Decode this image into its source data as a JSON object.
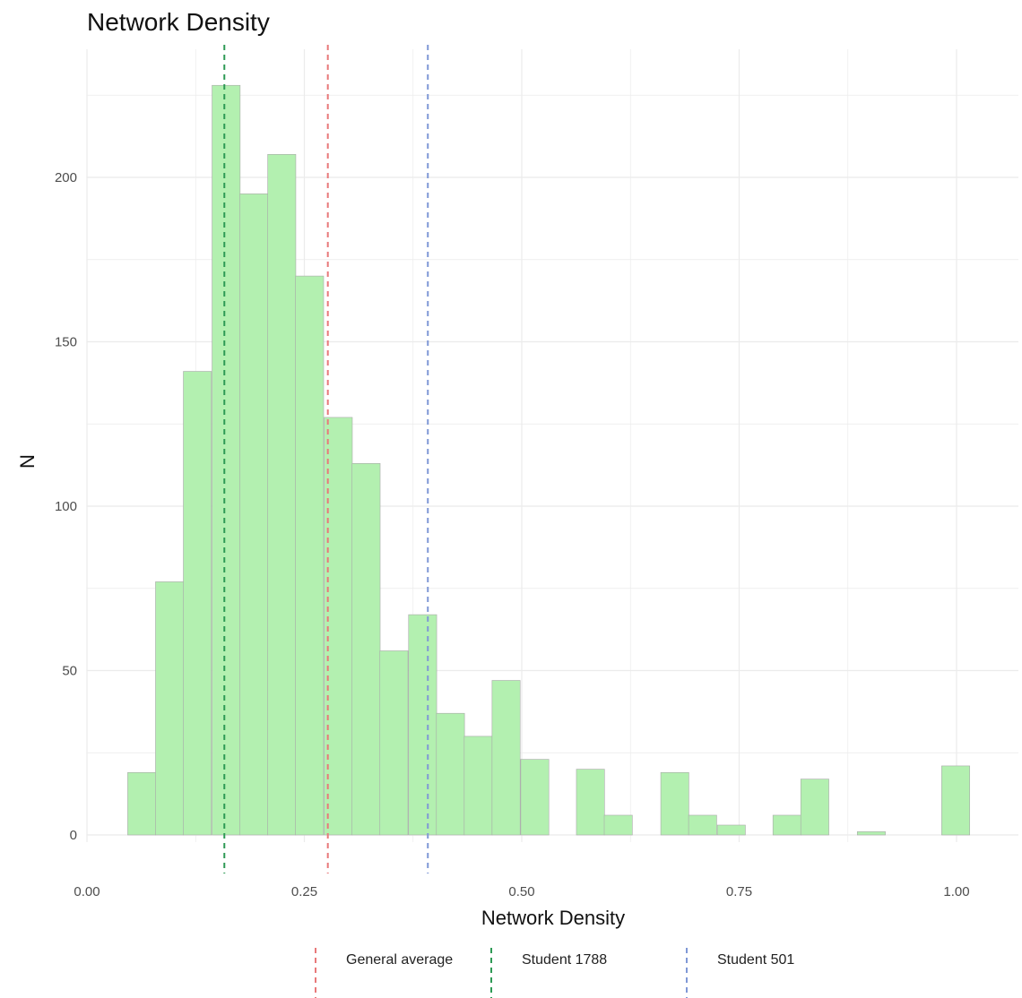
{
  "chart_data": {
    "type": "bar",
    "title": "Network Density",
    "xlabel": "Network Density",
    "ylabel": "N",
    "xlim": [
      0.0,
      1.05
    ],
    "ylim": [
      0,
      235
    ],
    "x_ticks": [
      0.0,
      0.25,
      0.5,
      0.75,
      1.0
    ],
    "x_tick_labels": [
      "0.00",
      "0.25",
      "0.50",
      "0.75",
      "1.00"
    ],
    "y_ticks": [
      0,
      50,
      100,
      150,
      200
    ],
    "y_tick_labels": [
      "0",
      "50",
      "100",
      "150",
      "200"
    ],
    "grid": true,
    "bin_width": 0.0323,
    "bins": [
      {
        "x": 0.063,
        "count": 19
      },
      {
        "x": 0.095,
        "count": 77
      },
      {
        "x": 0.127,
        "count": 141
      },
      {
        "x": 0.16,
        "count": 228
      },
      {
        "x": 0.192,
        "count": 195
      },
      {
        "x": 0.224,
        "count": 207
      },
      {
        "x": 0.256,
        "count": 170
      },
      {
        "x": 0.289,
        "count": 127
      },
      {
        "x": 0.321,
        "count": 113
      },
      {
        "x": 0.353,
        "count": 56
      },
      {
        "x": 0.386,
        "count": 67
      },
      {
        "x": 0.418,
        "count": 37
      },
      {
        "x": 0.45,
        "count": 30
      },
      {
        "x": 0.482,
        "count": 47
      },
      {
        "x": 0.515,
        "count": 23
      },
      {
        "x": 0.547,
        "count": 0
      },
      {
        "x": 0.579,
        "count": 20
      },
      {
        "x": 0.611,
        "count": 6
      },
      {
        "x": 0.644,
        "count": 0
      },
      {
        "x": 0.676,
        "count": 19
      },
      {
        "x": 0.708,
        "count": 6
      },
      {
        "x": 0.741,
        "count": 3
      },
      {
        "x": 0.773,
        "count": 0
      },
      {
        "x": 0.805,
        "count": 6
      },
      {
        "x": 0.837,
        "count": 17
      },
      {
        "x": 0.87,
        "count": 0
      },
      {
        "x": 0.902,
        "count": 1
      },
      {
        "x": 0.934,
        "count": 0
      },
      {
        "x": 0.966,
        "count": 0
      },
      {
        "x": 0.999,
        "count": 21
      }
    ],
    "bar_fill": "#b3f0b0",
    "bar_stroke": "#a9a9a9",
    "reference_lines": [
      {
        "name": "General average",
        "x": 0.277,
        "color": "#e8797a"
      },
      {
        "name": "Student 1788",
        "x": 0.158,
        "color": "#2e9a55"
      },
      {
        "name": "Student 501",
        "x": 0.392,
        "color": "#7f98d6"
      }
    ],
    "legend_position": "bottom"
  }
}
